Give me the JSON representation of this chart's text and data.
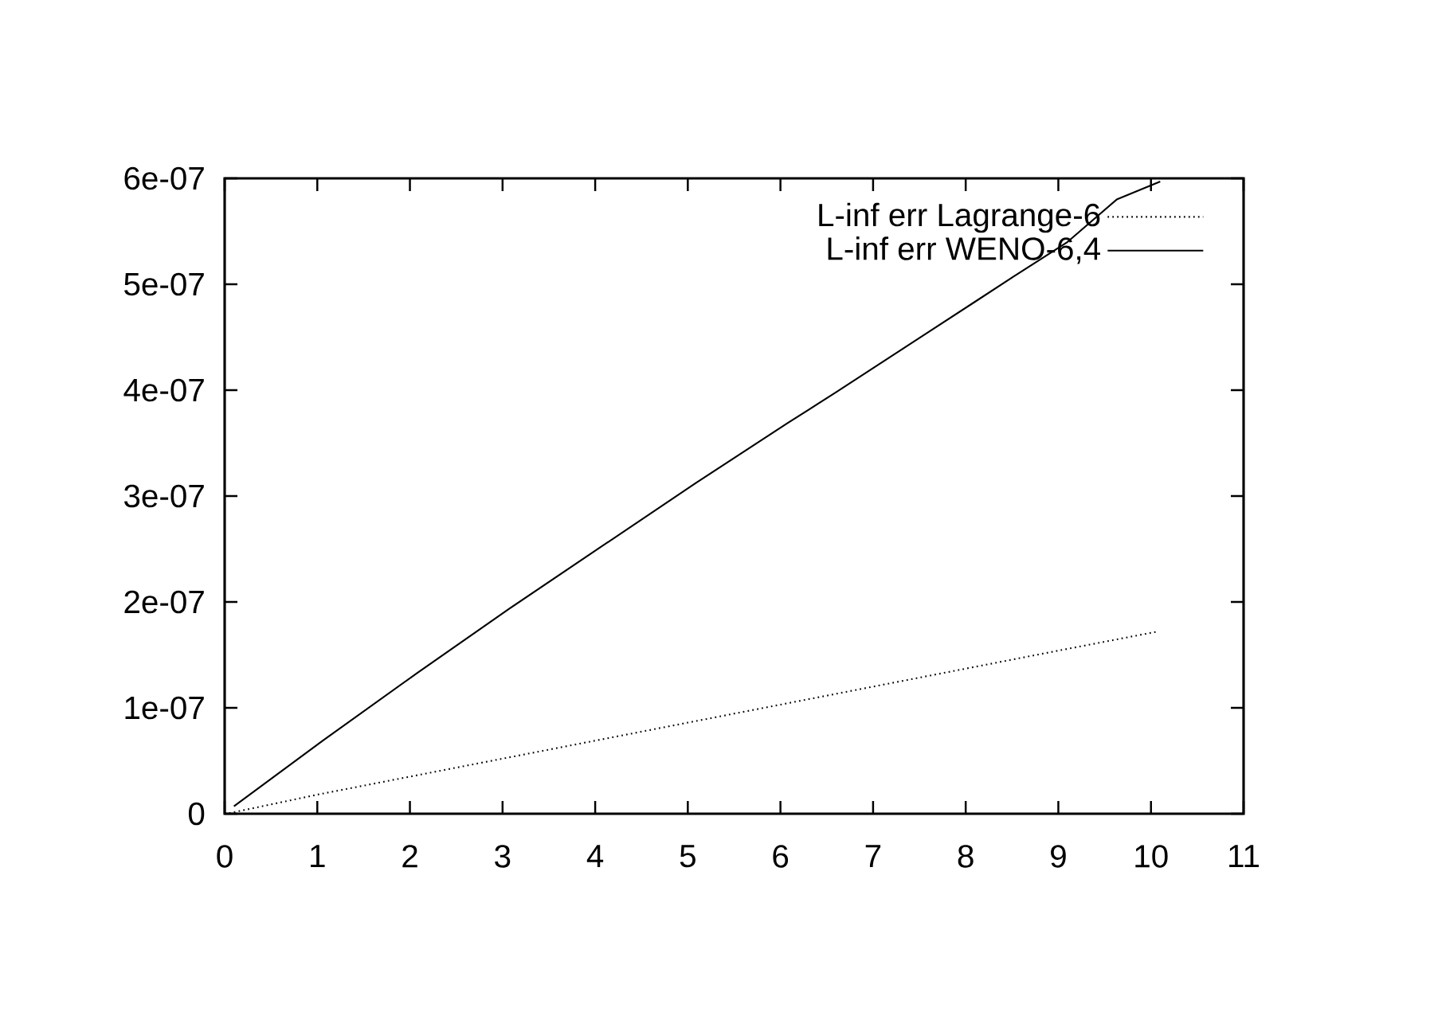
{
  "chart_data": {
    "type": "line",
    "series": [
      {
        "name": "L-inf err Lagrange-6",
        "color": "#000000",
        "line_style": "dotted",
        "x": [
          0.05,
          1,
          2,
          3,
          4,
          5,
          6,
          7,
          8,
          9,
          10.07
        ],
        "values": [
          5e-10,
          1.8e-08,
          3.5e-08,
          5.2e-08,
          6.9e-08,
          8.6e-08,
          1.03e-07,
          1.2e-07,
          1.37e-07,
          1.54e-07,
          1.72e-07
        ]
      },
      {
        "name": "L-inf err WENO-6,4",
        "color": "#000000",
        "line_style": "solid",
        "x": [
          0.1,
          1.06,
          2.08,
          3.08,
          4.08,
          5.08,
          6.08,
          6.6,
          7.6,
          8.11,
          8.6,
          9.1,
          9.63,
          10.1
        ],
        "values": [
          7e-09,
          6.9e-08,
          1.33e-07,
          1.94e-07,
          2.53e-07,
          3.12e-07,
          3.69e-07,
          3.98e-07,
          4.55e-07,
          4.84e-07,
          5.12e-07,
          5.4e-07,
          5.8e-07,
          5.97e-07
        ]
      }
    ],
    "xlim": [
      0,
      11
    ],
    "xticks": [
      0,
      1,
      2,
      3,
      4,
      5,
      6,
      7,
      8,
      9,
      10,
      11
    ],
    "ylim": [
      0,
      6e-07
    ],
    "yticks": [
      0,
      {
        "value": 1e-07,
        "label": "1e-07"
      },
      {
        "value": 2e-07,
        "label": "2e-07"
      },
      {
        "value": 3e-07,
        "label": "3e-07"
      },
      {
        "value": 4e-07,
        "label": "4e-07"
      },
      {
        "value": 5e-07,
        "label": "5e-07"
      },
      {
        "value": 6e-07,
        "label": "6e-07"
      }
    ],
    "grid": false,
    "legend": "top right",
    "marker": "none"
  }
}
